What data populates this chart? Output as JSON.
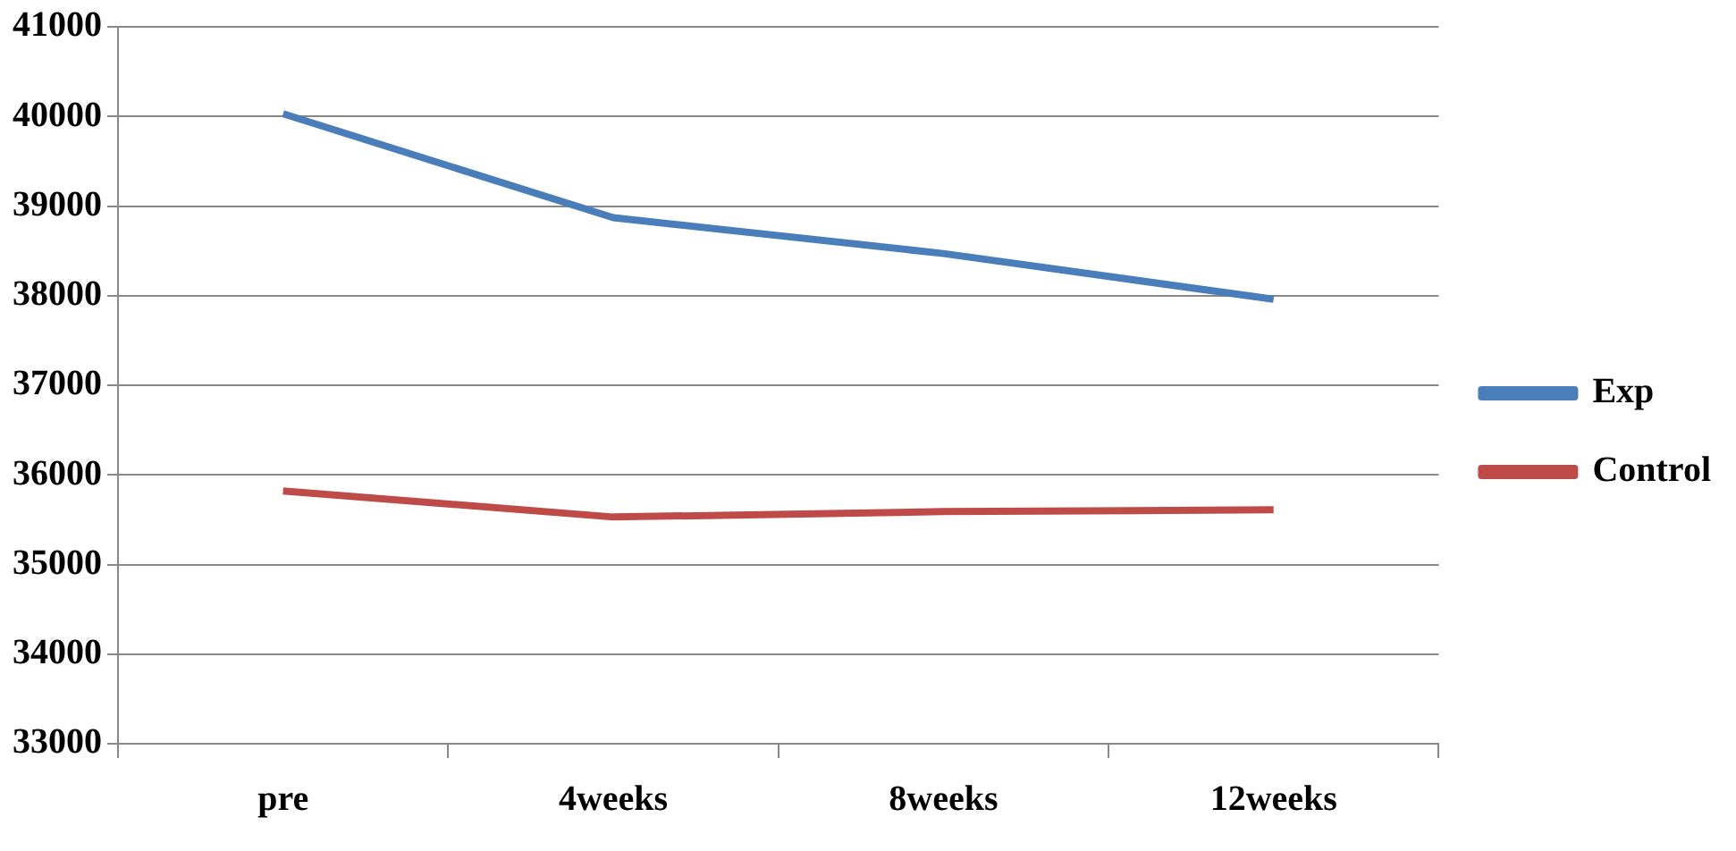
{
  "chart_data": {
    "type": "line",
    "categories": [
      "pre",
      "4weeks",
      "8weeks",
      "12weeks"
    ],
    "series": [
      {
        "name": "Exp",
        "color": "#4a7ebb",
        "values": [
          40030,
          38870,
          38470,
          37960
        ]
      },
      {
        "name": "Control",
        "color": "#be4b48",
        "values": [
          35820,
          35530,
          35590,
          35610
        ]
      }
    ],
    "ylim": [
      33000,
      41000
    ],
    "yticks": [
      33000,
      34000,
      35000,
      36000,
      37000,
      38000,
      39000,
      40000,
      41000
    ],
    "grid": "y",
    "legend": "right",
    "marker": "none",
    "line_style": "solid"
  }
}
